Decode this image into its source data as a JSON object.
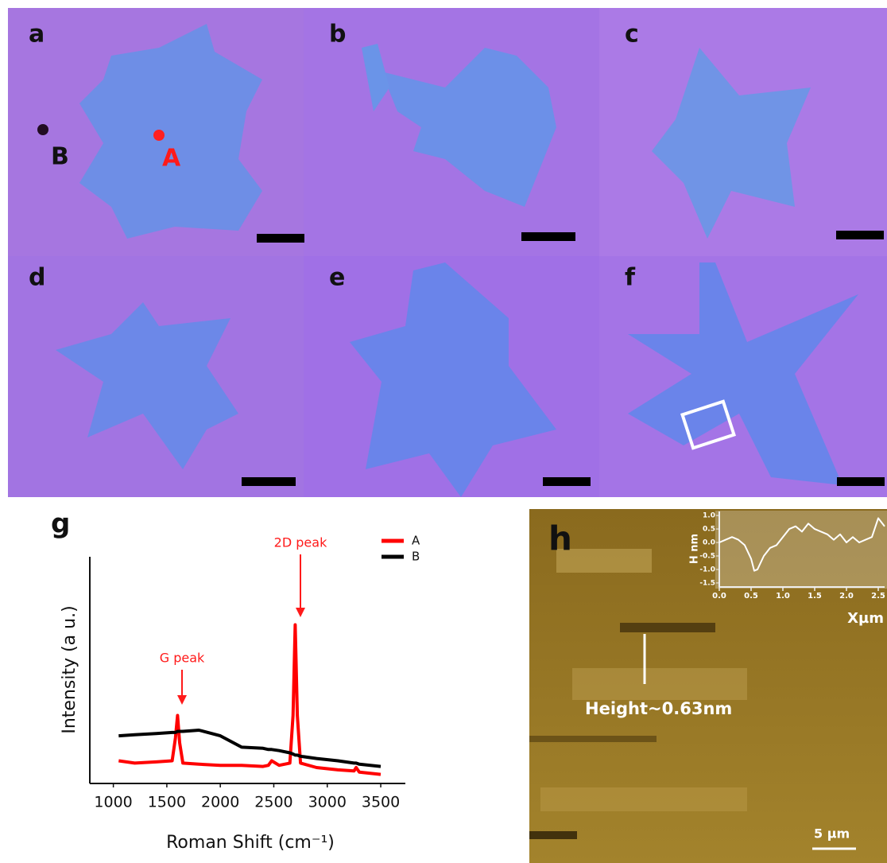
{
  "panels": {
    "labels": [
      "a",
      "b",
      "c",
      "d",
      "e",
      "f"
    ],
    "point_labels": [
      "B",
      "A"
    ]
  },
  "afm": {
    "label": "h",
    "annotation": "Height~0.63nm",
    "scale_bar": "5 µm"
  },
  "chart_data": [
    {
      "type": "line",
      "label": "g",
      "x_label": "Roman Shift (cm⁻¹)",
      "y_label": "Intensity (a u.)",
      "annotations": [
        "G peak",
        "2D peak"
      ],
      "x": [
        1050,
        1200,
        1400,
        1550,
        1580,
        1600,
        1620,
        1650,
        1800,
        2000,
        2200,
        2400,
        2450,
        2480,
        2550,
        2650,
        2680,
        2700,
        2720,
        2750,
        2900,
        3100,
        3250,
        3270,
        3300,
        3500
      ],
      "series": [
        {
          "name": "A",
          "color": "#ff0000",
          "values": [
            10,
            9,
            9.5,
            10,
            20,
            30,
            18,
            9,
            8.5,
            8,
            8,
            7.5,
            8,
            10,
            8,
            9,
            30,
            70,
            30,
            9,
            7,
            6,
            5.5,
            7,
            5,
            4
          ]
        },
        {
          "name": "B",
          "color": "#000000",
          "values": [
            21,
            21.5,
            22,
            22.5,
            22.5,
            23,
            23,
            23,
            23.5,
            21,
            16,
            15.5,
            15,
            15,
            14.5,
            13.5,
            13,
            12.5,
            12.5,
            12,
            11,
            10,
            9,
            9,
            8.5,
            7.5
          ]
        }
      ],
      "xlim": [
        780,
        3730
      ],
      "ylim": [
        0,
        100
      ],
      "xticks": [
        1000,
        1500,
        2000,
        2500,
        3000,
        3500
      ]
    },
    {
      "type": "line",
      "x_label": "Xµm",
      "y_label": "H nm",
      "x": [
        0,
        0.1,
        0.2,
        0.3,
        0.4,
        0.5,
        0.55,
        0.6,
        0.7,
        0.8,
        0.9,
        1.0,
        1.1,
        1.2,
        1.3,
        1.4,
        1.5,
        1.6,
        1.7,
        1.8,
        1.9,
        2.0,
        2.1,
        2.2,
        2.3,
        2.4,
        2.5,
        2.6
      ],
      "series": [
        {
          "color": "#ffffff",
          "values": [
            0,
            0.1,
            0.2,
            0.1,
            -0.1,
            -0.6,
            -1.05,
            -1.0,
            -0.5,
            -0.2,
            -0.1,
            0.2,
            0.5,
            0.6,
            0.4,
            0.7,
            0.5,
            0.4,
            0.3,
            0.1,
            0.3,
            0.0,
            0.2,
            0.0,
            0.1,
            0.2,
            0.9,
            0.6
          ]
        }
      ],
      "xlim": [
        0,
        2.6
      ],
      "ylim": [
        -1.65,
        1.15
      ],
      "xticks": [
        {
          "value": 0,
          "label": "0.0"
        },
        {
          "value": 0.5,
          "label": "0.5"
        },
        {
          "value": 1,
          "label": "1.0"
        },
        {
          "value": 1.5,
          "label": "1.5"
        },
        {
          "value": 2,
          "label": "2.0"
        },
        {
          "value": 2.5,
          "label": "2.5"
        }
      ],
      "yticks": [
        {
          "value": 1,
          "label": "1.0"
        },
        {
          "value": 0.5,
          "label": "0.5"
        },
        {
          "value": 0,
          "label": "0.0"
        },
        {
          "value": -0.5,
          "label": "-0.5"
        },
        {
          "value": -1,
          "label": "-1.0"
        },
        {
          "value": -1.5,
          "label": "-1.5"
        }
      ]
    }
  ]
}
